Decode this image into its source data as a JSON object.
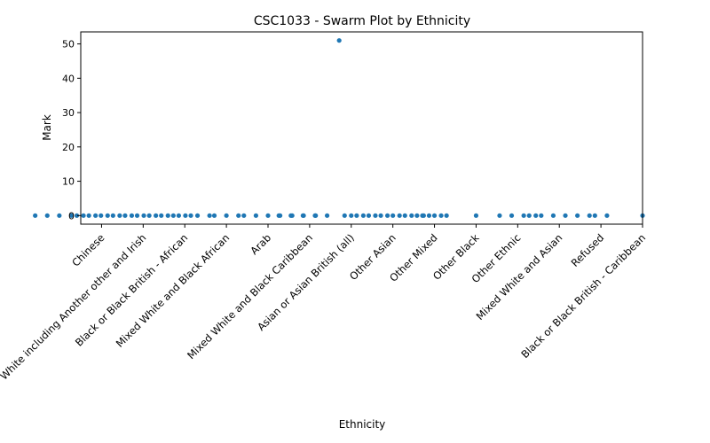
{
  "chart_data": {
    "type": "scatter",
    "style": "swarm",
    "title": "CSC1033 - Swarm Plot by Ethnicity",
    "xlabel": "Ethnicity",
    "ylabel": "Mark",
    "ylim": [
      -2.5,
      53.5
    ],
    "yticks": [
      0,
      10,
      20,
      30,
      40,
      50
    ],
    "point_color": "#1f77b4",
    "grid": false,
    "legend": "none",
    "categories": [
      "Chinese",
      "White including Another other and Irish",
      "Black or Black British - African",
      "Mixed White and Black African",
      "Arab",
      "Mixed White and Black Caribbean",
      "Asian or Asian British (all)",
      "Other Asian",
      "Other Mixed",
      "Other Black",
      "Other Ethnic",
      "Mixed White and Asian",
      "Refused",
      "Black or Black British - Caribbean"
    ],
    "series": [
      {
        "category": "Chinese",
        "values": [
          0,
          0,
          0,
          0,
          0,
          0,
          0,
          0,
          0,
          0,
          0,
          0
        ]
      },
      {
        "category": "White including Another other and Irish",
        "values": [
          0,
          0,
          0,
          0,
          0,
          0,
          0,
          0,
          0,
          0,
          0,
          0
        ]
      },
      {
        "category": "Black or Black British - African",
        "values": [
          0,
          0
        ]
      },
      {
        "category": "Mixed White and Black African",
        "values": [
          0,
          0,
          0
        ]
      },
      {
        "category": "Arab",
        "values": [
          0,
          0,
          0,
          0,
          0
        ]
      },
      {
        "category": "Mixed White and Black Caribbean",
        "values": [
          0,
          0
        ]
      },
      {
        "category": "Asian or Asian British (all)",
        "values": [
          0,
          0,
          0,
          0,
          0,
          51,
          0,
          0,
          0,
          0,
          0,
          0,
          0
        ]
      },
      {
        "category": "Other Asian",
        "values": [
          0,
          0,
          0,
          0,
          0,
          0,
          0,
          0,
          0
        ]
      },
      {
        "category": "Other Mixed",
        "values": [
          0,
          0,
          0
        ]
      },
      {
        "category": "Other Black",
        "values": [
          0
        ]
      },
      {
        "category": "Other Ethnic",
        "values": [
          0,
          0,
          0,
          0
        ]
      },
      {
        "category": "Mixed White and Asian",
        "values": [
          0,
          0,
          0,
          0,
          0,
          0
        ]
      },
      {
        "category": "Refused",
        "values": [
          0,
          0
        ]
      },
      {
        "category": "Black or Black British - Caribbean",
        "values": [
          0
        ]
      }
    ]
  }
}
